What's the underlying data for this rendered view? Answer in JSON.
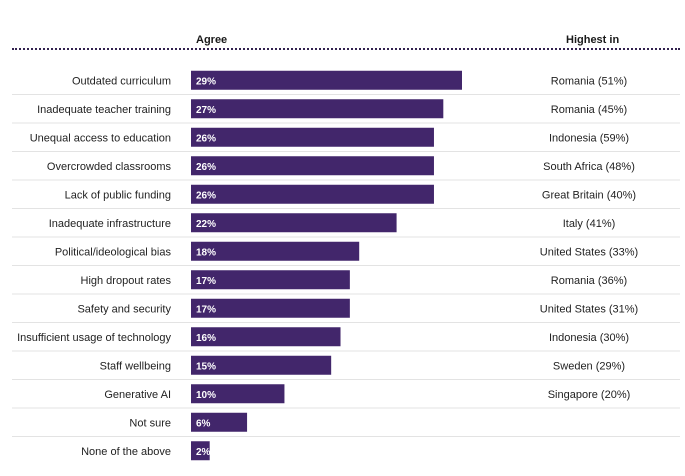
{
  "headers": {
    "agree": "Agree",
    "highest_in": "Highest in"
  },
  "colors": {
    "bar": "#42266b",
    "rule": "#33224f",
    "separator": "#e3e3e3"
  },
  "chart_data": {
    "type": "bar",
    "orientation": "horizontal",
    "title": "",
    "xlabel": "",
    "ylabel": "",
    "xlim": [
      0,
      29
    ],
    "categories": [
      "Outdated curriculum",
      "Inadequate teacher training",
      "Unequal access to education",
      "Overcrowded classrooms",
      "Lack of public funding",
      "Inadequate infrastructure",
      "Political/ideological bias",
      "High dropout rates",
      "Safety and security",
      "Insufficient usage of technology",
      "Staff wellbeing",
      "Generative AI",
      "Not sure",
      "None of the above"
    ],
    "values": [
      29,
      27,
      26,
      26,
      26,
      22,
      18,
      17,
      17,
      16,
      15,
      10,
      6,
      2
    ],
    "value_labels": [
      "29%",
      "27%",
      "26%",
      "26%",
      "26%",
      "22%",
      "18%",
      "17%",
      "17%",
      "16%",
      "15%",
      "10%",
      "6%",
      "2%"
    ],
    "highest_in": [
      "Romania (51%)",
      "Romania (45%)",
      "Indonesia (59%)",
      "South Africa (48%)",
      "Great Britain (40%)",
      "Italy (41%)",
      "United States (33%)",
      "Romania (36%)",
      "United States (31%)",
      "Indonesia (30%)",
      "Sweden (29%)",
      "Singapore (20%)",
      "",
      ""
    ]
  }
}
